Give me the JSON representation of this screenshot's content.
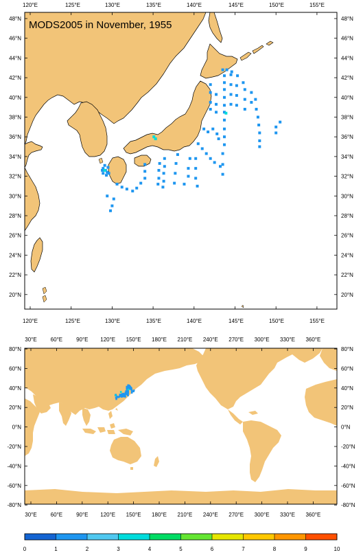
{
  "title": "MODS2005 in November, 1955",
  "colors": {
    "land": "#F2C478",
    "ocean": "#FFFFFF",
    "frame": "#000000",
    "scale": [
      "#1464D2",
      "#1E96F0",
      "#50C8F0",
      "#00DCDC",
      "#00DC64",
      "#64E632",
      "#E6E600",
      "#FFC800",
      "#FF9600",
      "#FF5000"
    ]
  },
  "map_top": {
    "lon_labels": [
      "120°E",
      "125°E",
      "130°E",
      "135°E",
      "140°E",
      "145°E",
      "150°E",
      "155°E"
    ],
    "lat_labels": [
      "48°N",
      "46°N",
      "44°N",
      "42°N",
      "40°N",
      "38°N",
      "36°N",
      "34°N",
      "32°N",
      "30°N",
      "28°N",
      "26°N",
      "24°N",
      "22°N",
      "20°N"
    ]
  },
  "map_bottom": {
    "lon_labels": [
      "30°E",
      "60°E",
      "90°E",
      "120°E",
      "150°E",
      "180°E",
      "210°E",
      "240°E",
      "270°E",
      "300°E",
      "330°E",
      "360°E"
    ],
    "lat_labels": [
      "80°N",
      "60°N",
      "40°N",
      "20°N",
      "0°N",
      "-20°N",
      "-40°N",
      "-60°N",
      "-80°N"
    ]
  },
  "colorbar": {
    "labels": [
      "0",
      "1",
      "2",
      "3",
      "4",
      "5",
      "6",
      "7",
      "8",
      "9",
      "10"
    ]
  },
  "observations": [
    {
      "lon": 143.5,
      "lat": 42.8
    },
    {
      "lon": 144,
      "lat": 42.8
    },
    {
      "lon": 144.6,
      "lat": 42.6
    },
    {
      "lon": 145.3,
      "lat": 42.2
    },
    {
      "lon": 146,
      "lat": 41.5
    },
    {
      "lon": 143.7,
      "lat": 42.2
    },
    {
      "lon": 143.7,
      "lat": 41.5
    },
    {
      "lon": 143.7,
      "lat": 40.8
    },
    {
      "lon": 143.7,
      "lat": 40
    },
    {
      "lon": 143.7,
      "lat": 39.2
    },
    {
      "lon": 143.7,
      "lat": 38.5
    },
    {
      "lon": 143.7,
      "lat": 37.7
    },
    {
      "lon": 143.7,
      "lat": 36.8
    },
    {
      "lon": 143.7,
      "lat": 36
    },
    {
      "lon": 143.7,
      "lat": 35.2
    },
    {
      "lon": 144.5,
      "lat": 42.3
    },
    {
      "lon": 144.5,
      "lat": 41.3
    },
    {
      "lon": 144.5,
      "lat": 40.3
    },
    {
      "lon": 144.5,
      "lat": 39.3
    },
    {
      "lon": 145.2,
      "lat": 41.2
    },
    {
      "lon": 145.2,
      "lat": 40.2
    },
    {
      "lon": 145.2,
      "lat": 39.2
    },
    {
      "lon": 146.2,
      "lat": 40.8
    },
    {
      "lon": 146.2,
      "lat": 39.8
    },
    {
      "lon": 146.2,
      "lat": 38.8
    },
    {
      "lon": 147,
      "lat": 40.5
    },
    {
      "lon": 147,
      "lat": 39.5
    },
    {
      "lon": 147.5,
      "lat": 39.8
    },
    {
      "lon": 147.6,
      "lat": 38.8
    },
    {
      "lon": 147.8,
      "lat": 38
    },
    {
      "lon": 147.9,
      "lat": 37.2
    },
    {
      "lon": 148,
      "lat": 36.4
    },
    {
      "lon": 148,
      "lat": 35.6
    },
    {
      "lon": 148,
      "lat": 35
    },
    {
      "lon": 150,
      "lat": 37
    },
    {
      "lon": 150,
      "lat": 36.4
    },
    {
      "lon": 150.5,
      "lat": 37.5
    },
    {
      "lon": 142,
      "lat": 41.3
    },
    {
      "lon": 142,
      "lat": 40.5
    },
    {
      "lon": 142,
      "lat": 39.5
    },
    {
      "lon": 142,
      "lat": 38.8
    },
    {
      "lon": 142.7,
      "lat": 40.3
    },
    {
      "lon": 142.7,
      "lat": 39.3
    },
    {
      "lon": 142.7,
      "lat": 38.5
    },
    {
      "lon": 141.2,
      "lat": 36.8
    },
    {
      "lon": 141.7,
      "lat": 36.5
    },
    {
      "lon": 142.3,
      "lat": 36.8
    },
    {
      "lon": 142.8,
      "lat": 36.3
    },
    {
      "lon": 143,
      "lat": 35.8
    },
    {
      "lon": 140.5,
      "lat": 35.3
    },
    {
      "lon": 141,
      "lat": 34.8
    },
    {
      "lon": 141.5,
      "lat": 34.3
    },
    {
      "lon": 142,
      "lat": 33.8
    },
    {
      "lon": 142.5,
      "lat": 33.4
    },
    {
      "lon": 143.2,
      "lat": 33
    },
    {
      "lon": 143.5,
      "lat": 34.3
    },
    {
      "lon": 143.5,
      "lat": 33.2
    },
    {
      "lon": 143.5,
      "lat": 32.2
    },
    {
      "lon": 140.2,
      "lat": 33.8
    },
    {
      "lon": 140.2,
      "lat": 32.8
    },
    {
      "lon": 140.2,
      "lat": 31.8
    },
    {
      "lon": 140.4,
      "lat": 31
    },
    {
      "lon": 139.5,
      "lat": 33.8
    },
    {
      "lon": 139.3,
      "lat": 32.8
    },
    {
      "lon": 139.3,
      "lat": 32
    },
    {
      "lon": 138,
      "lat": 34.2
    },
    {
      "lon": 137.8,
      "lat": 33.3
    },
    {
      "lon": 137.7,
      "lat": 32.3
    },
    {
      "lon": 137.6,
      "lat": 31.3
    },
    {
      "lon": 138.8,
      "lat": 31.2
    },
    {
      "lon": 135.8,
      "lat": 33.3
    },
    {
      "lon": 135.7,
      "lat": 32.6
    },
    {
      "lon": 135.7,
      "lat": 31.8
    },
    {
      "lon": 135.6,
      "lat": 31.2
    },
    {
      "lon": 136.4,
      "lat": 33.8
    },
    {
      "lon": 136.4,
      "lat": 33
    },
    {
      "lon": 136.3,
      "lat": 32.3
    },
    {
      "lon": 136.3,
      "lat": 31.5
    },
    {
      "lon": 136.2,
      "lat": 30.9
    },
    {
      "lon": 134,
      "lat": 33.2
    },
    {
      "lon": 134,
      "lat": 32.5
    },
    {
      "lon": 134,
      "lat": 31.8
    },
    {
      "lon": 133.5,
      "lat": 31.3
    },
    {
      "lon": 133,
      "lat": 30.8
    },
    {
      "lon": 132.5,
      "lat": 30.5
    },
    {
      "lon": 131.8,
      "lat": 30.7
    },
    {
      "lon": 131.2,
      "lat": 30.9
    },
    {
      "lon": 130.6,
      "lat": 31.2
    },
    {
      "lon": 129.4,
      "lat": 30
    },
    {
      "lon": 130.2,
      "lat": 29.7
    },
    {
      "lon": 130,
      "lat": 29
    },
    {
      "lon": 129.8,
      "lat": 28.5
    },
    {
      "lon": 128.9,
      "lat": 32.8
    },
    {
      "lon": 129.2,
      "lat": 32.6
    },
    {
      "lon": 129.4,
      "lat": 32.4
    },
    {
      "lon": 128.9,
      "lat": 32.3
    },
    {
      "lon": 129.5,
      "lat": 32.9
    },
    {
      "lon": 129.1,
      "lat": 33.1
    },
    {
      "lon": 129.3,
      "lat": 32.1
    },
    {
      "lon": 129.6,
      "lat": 32.3
    },
    {
      "lon": 128.8,
      "lat": 32.6
    }
  ],
  "observations_alt": [
    {
      "lon": 135.1,
      "lat": 36
    },
    {
      "lon": 135.3,
      "lat": 35.8
    },
    {
      "lon": 143.9,
      "lat": 38.4
    },
    {
      "lon": 129.1,
      "lat": 32.6
    }
  ]
}
